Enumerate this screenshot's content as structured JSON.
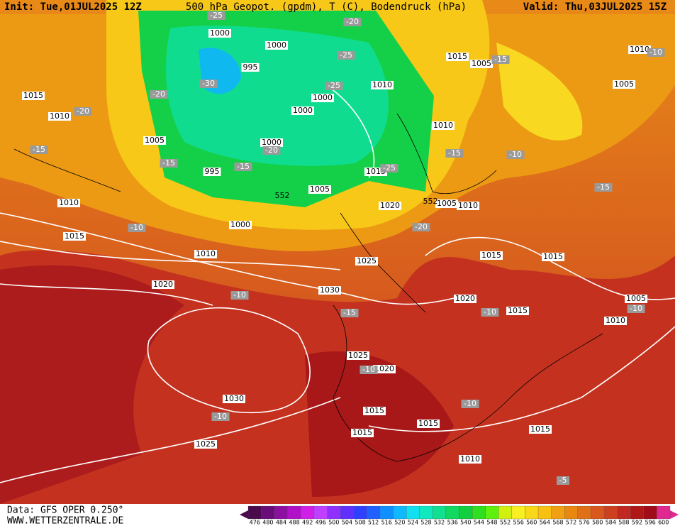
{
  "header": {
    "init": "Init: Tue,01JUL2025 12Z",
    "title": "500 hPa Geopot. (gpdm), T (C), Bodendruck (hPa)",
    "valid": "Valid: Thu,03JUL2025 15Z"
  },
  "footer": {
    "data": "Data: GFS OPER 0.250°",
    "site": "WWW.WETTERZENTRALE.DE"
  },
  "isobar_labels": [
    1000,
    1000,
    995,
    1015,
    1010,
    1005,
    1000,
    1000,
    1010,
    1015,
    1005,
    1010,
    1005,
    1010,
    1000,
    995,
    1005,
    1015,
    1010,
    1020,
    1005,
    1010,
    1000,
    1015,
    1010,
    1015,
    1015,
    1025,
    1020,
    1030,
    1020,
    1015,
    1005,
    1010,
    1025,
    1020,
    1030,
    1015,
    1015,
    1015,
    1015,
    1025,
    1010
  ],
  "temperature_labels": [
    -25,
    -20,
    -25,
    -30,
    -20,
    -25,
    -20,
    -15,
    -15,
    -20,
    -15,
    -15,
    -25,
    -15,
    -10,
    -15,
    -10,
    -20,
    -10,
    -15,
    -10,
    -10,
    -10,
    -10,
    -10,
    -5,
    -10
  ],
  "geopotential_labels": [
    552,
    552
  ],
  "scale": {
    "labels": [
      476,
      480,
      484,
      488,
      492,
      496,
      500,
      504,
      508,
      512,
      516,
      520,
      524,
      528,
      532,
      536,
      540,
      544,
      548,
      552,
      556,
      560,
      564,
      568,
      572,
      576,
      580,
      584,
      588,
      592,
      596,
      600
    ],
    "colors": [
      "#4b0a4b",
      "#6a0d7a",
      "#8c10a0",
      "#b010c8",
      "#d020e8",
      "#c040ff",
      "#9030ff",
      "#6030ff",
      "#3040ff",
      "#2060ff",
      "#1090ff",
      "#10b8ff",
      "#10e0f0",
      "#10e8c0",
      "#10e090",
      "#10d860",
      "#10d040",
      "#30e020",
      "#60f010",
      "#d0f010",
      "#f8f020",
      "#f8d818",
      "#f8c010",
      "#f0a010",
      "#e88810",
      "#e07018",
      "#d85820",
      "#cc4020",
      "#c02820",
      "#b01818",
      "#a00c18",
      "#e02890"
    ]
  }
}
